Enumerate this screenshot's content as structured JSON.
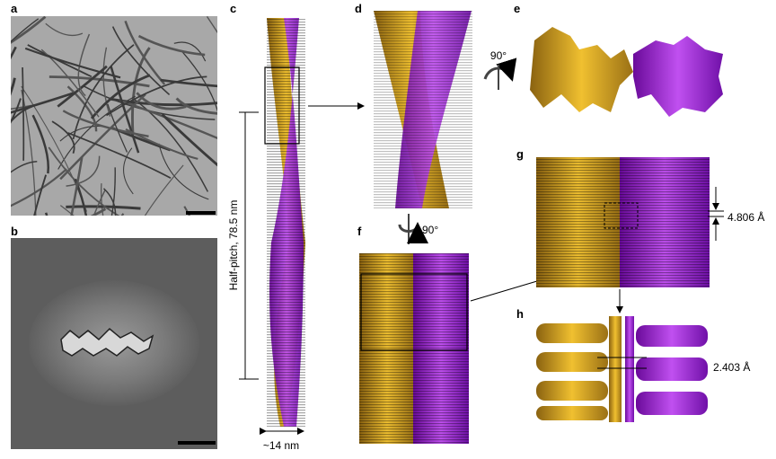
{
  "panels": [
    {
      "label": "a"
    },
    {
      "label": "b"
    },
    {
      "label": "c"
    },
    {
      "label": "d"
    },
    {
      "label": "e"
    },
    {
      "label": "f"
    },
    {
      "label": "g"
    },
    {
      "label": "h"
    }
  ],
  "annotations": {
    "half_pitch": "Half-pitch, 78.5 nm",
    "width": "~14 nm",
    "rotation_e": "90°",
    "rotation_f": "90°",
    "spacing_g": "4.806 Å",
    "spacing_h": "2.403 Å"
  }
}
